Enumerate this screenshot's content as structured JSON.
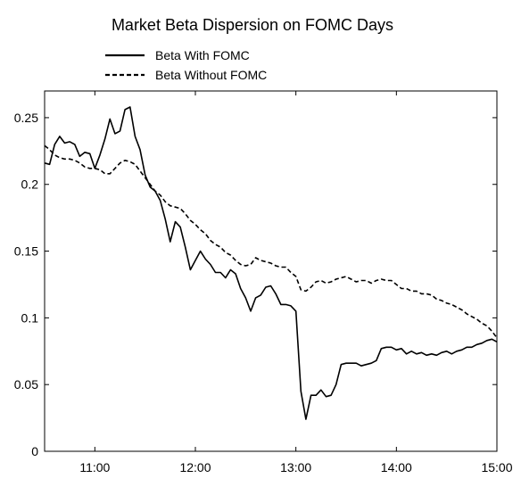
{
  "chart_data": {
    "type": "line",
    "title": "Market Beta Dispersion on FOMC Days",
    "xlabel": "",
    "ylabel": "",
    "xlim": [
      "10:30",
      "15:00"
    ],
    "ylim": [
      0,
      0.27
    ],
    "xticks": [
      "11:00",
      "12:00",
      "13:00",
      "14:00",
      "15:00"
    ],
    "yticks": [
      "0",
      "0.05",
      "0.1",
      "0.15",
      "0.2",
      "0.25"
    ],
    "grid": false,
    "legend_position": "top-left",
    "series": [
      {
        "name": "Beta With FOMC",
        "style": "solid",
        "color": "#000000",
        "points": [
          [
            "10:30",
            0.216
          ],
          [
            "10:33",
            0.215
          ],
          [
            "10:36",
            0.23
          ],
          [
            "10:39",
            0.236
          ],
          [
            "10:42",
            0.231
          ],
          [
            "10:45",
            0.232
          ],
          [
            "10:48",
            0.23
          ],
          [
            "10:51",
            0.221
          ],
          [
            "10:54",
            0.224
          ],
          [
            "10:57",
            0.223
          ],
          [
            "11:00",
            0.212
          ],
          [
            "11:03",
            0.222
          ],
          [
            "11:06",
            0.234
          ],
          [
            "11:09",
            0.249
          ],
          [
            "11:12",
            0.238
          ],
          [
            "11:15",
            0.24
          ],
          [
            "11:18",
            0.256
          ],
          [
            "11:21",
            0.258
          ],
          [
            "11:24",
            0.236
          ],
          [
            "11:27",
            0.226
          ],
          [
            "11:30",
            0.207
          ],
          [
            "11:33",
            0.198
          ],
          [
            "11:36",
            0.195
          ],
          [
            "11:39",
            0.188
          ],
          [
            "11:42",
            0.174
          ],
          [
            "11:45",
            0.157
          ],
          [
            "11:48",
            0.172
          ],
          [
            "11:51",
            0.168
          ],
          [
            "11:54",
            0.153
          ],
          [
            "11:57",
            0.136
          ],
          [
            "12:00",
            0.143
          ],
          [
            "12:03",
            0.15
          ],
          [
            "12:06",
            0.144
          ],
          [
            "12:09",
            0.14
          ],
          [
            "12:12",
            0.134
          ],
          [
            "12:15",
            0.134
          ],
          [
            "12:18",
            0.13
          ],
          [
            "12:21",
            0.136
          ],
          [
            "12:24",
            0.133
          ],
          [
            "12:27",
            0.122
          ],
          [
            "12:30",
            0.115
          ],
          [
            "12:33",
            0.105
          ],
          [
            "12:36",
            0.115
          ],
          [
            "12:39",
            0.117
          ],
          [
            "12:42",
            0.123
          ],
          [
            "12:45",
            0.124
          ],
          [
            "12:48",
            0.118
          ],
          [
            "12:51",
            0.11
          ],
          [
            "12:54",
            0.11
          ],
          [
            "12:57",
            0.109
          ],
          [
            "13:00",
            0.105
          ],
          [
            "13:03",
            0.045
          ],
          [
            "13:06",
            0.024
          ],
          [
            "13:09",
            0.042
          ],
          [
            "13:12",
            0.042
          ],
          [
            "13:15",
            0.046
          ],
          [
            "13:18",
            0.041
          ],
          [
            "13:21",
            0.042
          ],
          [
            "13:24",
            0.05
          ],
          [
            "13:27",
            0.065
          ],
          [
            "13:30",
            0.066
          ],
          [
            "13:33",
            0.066
          ],
          [
            "13:36",
            0.066
          ],
          [
            "13:39",
            0.064
          ],
          [
            "13:42",
            0.065
          ],
          [
            "13:45",
            0.066
          ],
          [
            "13:48",
            0.068
          ],
          [
            "13:51",
            0.077
          ],
          [
            "13:54",
            0.078
          ],
          [
            "13:57",
            0.078
          ],
          [
            "14:00",
            0.076
          ],
          [
            "14:03",
            0.077
          ],
          [
            "14:06",
            0.073
          ],
          [
            "14:09",
            0.075
          ],
          [
            "14:12",
            0.073
          ],
          [
            "14:15",
            0.074
          ],
          [
            "14:18",
            0.072
          ],
          [
            "14:21",
            0.073
          ],
          [
            "14:24",
            0.072
          ],
          [
            "14:27",
            0.074
          ],
          [
            "14:30",
            0.075
          ],
          [
            "14:33",
            0.073
          ],
          [
            "14:36",
            0.075
          ],
          [
            "14:39",
            0.076
          ],
          [
            "14:42",
            0.078
          ],
          [
            "14:45",
            0.078
          ],
          [
            "14:48",
            0.08
          ],
          [
            "14:51",
            0.081
          ],
          [
            "14:54",
            0.083
          ],
          [
            "14:57",
            0.084
          ],
          [
            "15:00",
            0.082
          ]
        ]
      },
      {
        "name": "Beta Without FOMC",
        "style": "dashed",
        "color": "#000000",
        "points": [
          [
            "10:30",
            0.229
          ],
          [
            "10:33",
            0.226
          ],
          [
            "10:36",
            0.222
          ],
          [
            "10:39",
            0.22
          ],
          [
            "10:42",
            0.219
          ],
          [
            "10:45",
            0.219
          ],
          [
            "10:48",
            0.218
          ],
          [
            "10:51",
            0.216
          ],
          [
            "10:54",
            0.213
          ],
          [
            "10:57",
            0.212
          ],
          [
            "11:00",
            0.212
          ],
          [
            "11:03",
            0.211
          ],
          [
            "11:06",
            0.208
          ],
          [
            "11:09",
            0.208
          ],
          [
            "11:12",
            0.212
          ],
          [
            "11:15",
            0.216
          ],
          [
            "11:18",
            0.218
          ],
          [
            "11:21",
            0.217
          ],
          [
            "11:24",
            0.215
          ],
          [
            "11:27",
            0.21
          ],
          [
            "11:30",
            0.205
          ],
          [
            "11:33",
            0.2
          ],
          [
            "11:36",
            0.195
          ],
          [
            "11:39",
            0.192
          ],
          [
            "11:42",
            0.187
          ],
          [
            "11:45",
            0.184
          ],
          [
            "11:48",
            0.183
          ],
          [
            "11:51",
            0.182
          ],
          [
            "11:54",
            0.178
          ],
          [
            "11:57",
            0.173
          ],
          [
            "12:00",
            0.17
          ],
          [
            "12:03",
            0.166
          ],
          [
            "12:06",
            0.163
          ],
          [
            "12:09",
            0.158
          ],
          [
            "12:12",
            0.155
          ],
          [
            "12:15",
            0.153
          ],
          [
            "12:18",
            0.149
          ],
          [
            "12:21",
            0.147
          ],
          [
            "12:24",
            0.143
          ],
          [
            "12:27",
            0.14
          ],
          [
            "12:30",
            0.139
          ],
          [
            "12:33",
            0.14
          ],
          [
            "12:36",
            0.145
          ],
          [
            "12:39",
            0.143
          ],
          [
            "12:42",
            0.142
          ],
          [
            "12:45",
            0.141
          ],
          [
            "12:48",
            0.139
          ],
          [
            "12:51",
            0.138
          ],
          [
            "12:54",
            0.138
          ],
          [
            "12:57",
            0.134
          ],
          [
            "13:00",
            0.131
          ],
          [
            "13:03",
            0.121
          ],
          [
            "13:06",
            0.12
          ],
          [
            "13:09",
            0.123
          ],
          [
            "13:12",
            0.127
          ],
          [
            "13:15",
            0.128
          ],
          [
            "13:18",
            0.126
          ],
          [
            "13:21",
            0.127
          ],
          [
            "13:24",
            0.129
          ],
          [
            "13:27",
            0.13
          ],
          [
            "13:30",
            0.131
          ],
          [
            "13:33",
            0.129
          ],
          [
            "13:36",
            0.127
          ],
          [
            "13:39",
            0.128
          ],
          [
            "13:42",
            0.128
          ],
          [
            "13:45",
            0.126
          ],
          [
            "13:48",
            0.128
          ],
          [
            "13:51",
            0.129
          ],
          [
            "13:54",
            0.128
          ],
          [
            "13:57",
            0.128
          ],
          [
            "14:00",
            0.125
          ],
          [
            "14:03",
            0.122
          ],
          [
            "14:06",
            0.122
          ],
          [
            "14:09",
            0.12
          ],
          [
            "14:12",
            0.12
          ],
          [
            "14:15",
            0.118
          ],
          [
            "14:18",
            0.118
          ],
          [
            "14:21",
            0.117
          ],
          [
            "14:24",
            0.114
          ],
          [
            "14:27",
            0.113
          ],
          [
            "14:30",
            0.111
          ],
          [
            "14:33",
            0.11
          ],
          [
            "14:36",
            0.108
          ],
          [
            "14:39",
            0.106
          ],
          [
            "14:42",
            0.103
          ],
          [
            "14:45",
            0.101
          ],
          [
            "14:48",
            0.099
          ],
          [
            "14:51",
            0.096
          ],
          [
            "14:54",
            0.094
          ],
          [
            "14:57",
            0.09
          ],
          [
            "15:00",
            0.085
          ]
        ]
      }
    ]
  }
}
